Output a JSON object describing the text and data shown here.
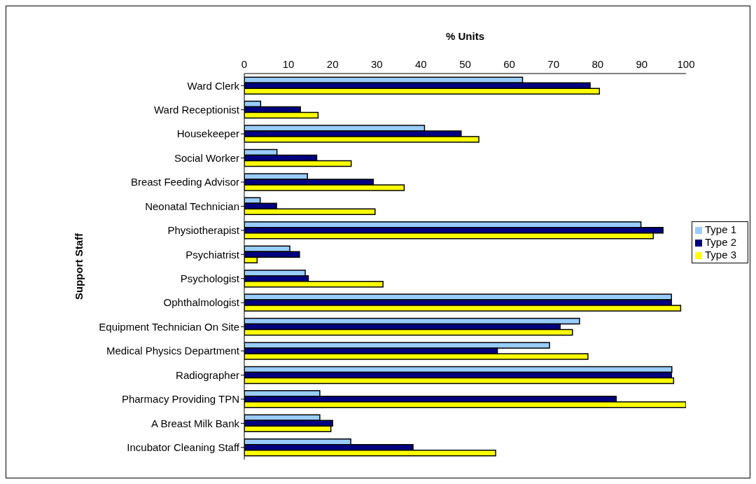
{
  "chart_data": {
    "type": "bar",
    "orientation": "horizontal",
    "xlabel": "% Units",
    "ylabel": "Support Staff",
    "categories": [
      "Ward Clerk",
      "Ward Receptionist",
      "Housekeeper",
      "Social Worker",
      "Breast Feeding Advisor",
      "Neonatal Technician",
      "Physiotherapist",
      "Psychiatrist",
      "Psychologist",
      "Ophthalmologist",
      "Equipment Technician On Site",
      "Medical Physics Department",
      "Radiographer",
      "Pharmacy Providing TPN",
      "A Breast Milk Bank",
      "Incubator Cleaning Staff"
    ],
    "series": [
      {
        "name": "Type 1",
        "color": "#99ccff",
        "values": [
          63,
          3.7,
          40.8,
          7.4,
          14.3,
          3.6,
          89.8,
          10.3,
          13.8,
          96.7,
          75.9,
          69.1,
          96.8,
          17.1,
          17.1,
          24.1
        ]
      },
      {
        "name": "Type 2",
        "color": "#000080",
        "values": [
          78.3,
          12.7,
          49.1,
          16.4,
          29.2,
          7.3,
          94.8,
          12.5,
          14.5,
          96.7,
          71.5,
          57.3,
          96.7,
          84.2,
          20,
          38.2
        ]
      },
      {
        "name": "Type 3",
        "color": "#ffff00",
        "values": [
          80.4,
          16.7,
          53.1,
          24.2,
          36.2,
          29.6,
          92.6,
          2.9,
          31.4,
          98.8,
          74.3,
          77.8,
          97.2,
          100,
          19.6,
          56.9
        ]
      }
    ],
    "xlim": [
      0,
      100
    ],
    "xticks": [
      0,
      10,
      20,
      30,
      40,
      50,
      60,
      70,
      80,
      90,
      100
    ],
    "grid": false,
    "legend": "right"
  }
}
